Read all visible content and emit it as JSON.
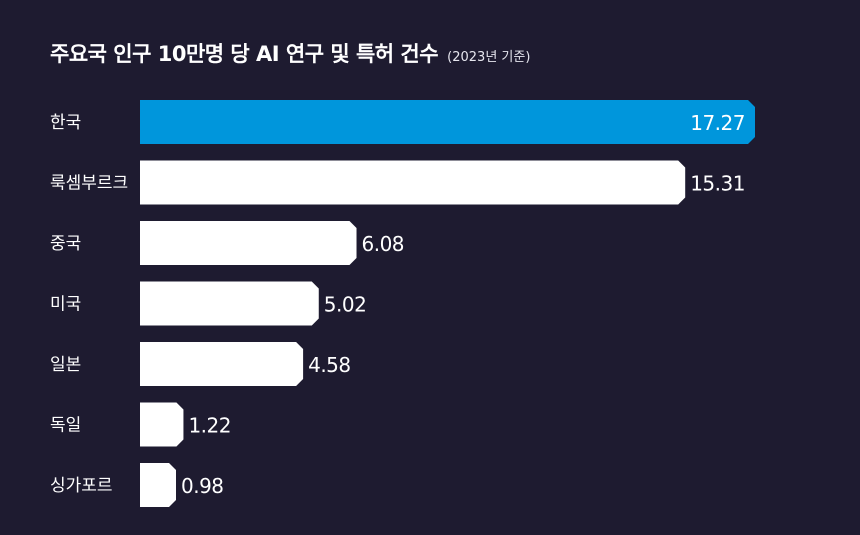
{
  "title": "주요국 인구 10만명 당 AI 연구 및 특허 건수",
  "subtitle": "(2023년 기준)",
  "colors": {
    "background": "#1e1b30",
    "highlight": "#0096dc",
    "bar": "#ffffff",
    "text": "#ffffff"
  },
  "chart_data": {
    "type": "bar",
    "orientation": "horizontal",
    "title": "주요국 인구 10만명 당 AI 연구 및 특허 건수",
    "subtitle": "(2023년 기준)",
    "categories": [
      "한국",
      "룩셈부르크",
      "중국",
      "미국",
      "일본",
      "독일",
      "싱가포르"
    ],
    "values": [
      17.27,
      15.31,
      6.08,
      5.02,
      4.58,
      1.22,
      0.98
    ],
    "labels": [
      "17.27",
      "15.31",
      "6.08",
      "5.02",
      "4.58",
      "1.22",
      "0.98"
    ],
    "highlight_index": 0,
    "xlim": [
      0,
      17.27
    ],
    "grid": false,
    "legend": "none"
  }
}
